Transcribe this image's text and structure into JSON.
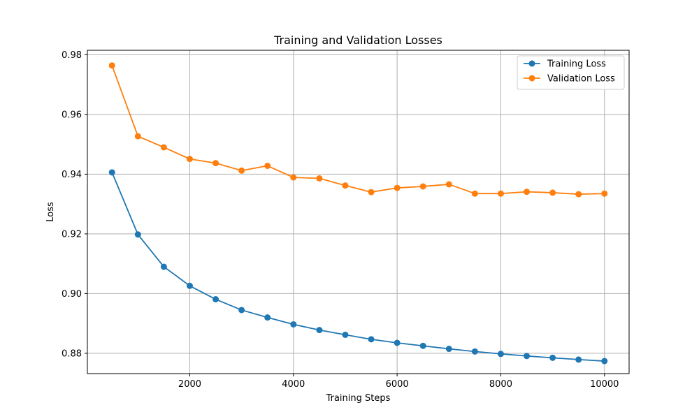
{
  "chart_data": {
    "type": "line",
    "title": "Training and Validation Losses",
    "xlabel": "Training Steps",
    "ylabel": "Loss",
    "x": [
      500,
      1000,
      1500,
      2000,
      2500,
      3000,
      3500,
      4000,
      4500,
      5000,
      5500,
      6000,
      6500,
      7000,
      7500,
      8000,
      8500,
      9000,
      9500,
      10000
    ],
    "xlim": [
      25,
      10475
    ],
    "ylim": [
      0.8732,
      0.9815
    ],
    "xticks": [
      2000,
      4000,
      6000,
      8000,
      10000
    ],
    "xtick_labels": [
      "2000",
      "4000",
      "6000",
      "8000",
      "10000"
    ],
    "yticks": [
      0.88,
      0.9,
      0.92,
      0.94,
      0.96,
      0.98
    ],
    "ytick_labels": [
      "0.88",
      "0.90",
      "0.92",
      "0.94",
      "0.96",
      "0.98"
    ],
    "grid": true,
    "legend_position": "top-right",
    "series": [
      {
        "name": "Training Loss",
        "color": "#1f77b4",
        "values": [
          0.9406,
          0.9198,
          0.909,
          0.9026,
          0.8981,
          0.8945,
          0.892,
          0.8897,
          0.8878,
          0.8862,
          0.8847,
          0.8835,
          0.8825,
          0.8815,
          0.8806,
          0.8798,
          0.8791,
          0.8785,
          0.8779,
          0.8774
        ]
      },
      {
        "name": "Validation Loss",
        "color": "#ff7f0e",
        "values": [
          0.9764,
          0.9527,
          0.949,
          0.9451,
          0.9437,
          0.9412,
          0.9428,
          0.9389,
          0.9386,
          0.9362,
          0.934,
          0.9354,
          0.9359,
          0.9366,
          0.9335,
          0.9335,
          0.9341,
          0.9338,
          0.9333,
          0.9335
        ]
      }
    ]
  }
}
